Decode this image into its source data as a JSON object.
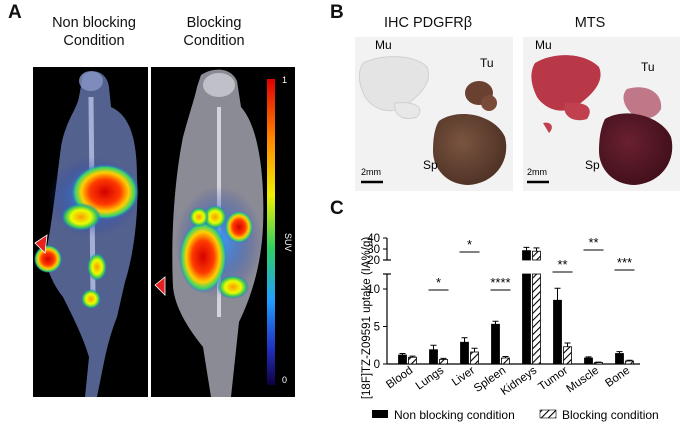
{
  "panels": {
    "a": {
      "letter": "A",
      "left_title_line1": "Non blocking",
      "left_title_line2": "Condition",
      "right_title_line1": "Blocking",
      "right_title_line2": "Condition",
      "colorbar": {
        "label": "SUV",
        "max_label": "1",
        "min_label": "0"
      }
    },
    "b": {
      "letter": "B",
      "left_title": "IHC PDGFRβ",
      "right_title": "MTS",
      "tissue_labels": {
        "mu": "Mu",
        "tu": "Tu",
        "sp": "Sp"
      },
      "scale_bar_label": "2mm",
      "colors": {
        "ihc_tissue": "#5a3a2c",
        "mts_muscle": "#b03040",
        "mts_spleen": "#4a1424"
      }
    },
    "c": {
      "letter": "C"
    }
  },
  "chart_data": {
    "type": "bar",
    "ylabel": "[18F]TZ-Z09591 uptake (IA%/g)",
    "categories": [
      "Blood",
      "Lungs",
      "Liver",
      "Spleen",
      "Kidneys",
      "Tumor",
      "Muscle",
      "Bone"
    ],
    "series": [
      {
        "name": "Non blocking condition",
        "fill": "solid",
        "values": [
          1.2,
          1.9,
          2.9,
          5.3,
          28.5,
          8.5,
          0.8,
          1.4
        ],
        "errors": [
          0.2,
          0.6,
          0.6,
          0.4,
          3.0,
          1.6,
          0.15,
          0.25
        ]
      },
      {
        "name": "Blocking condition",
        "fill": "hatched",
        "values": [
          0.9,
          0.6,
          1.6,
          0.8,
          28.0,
          2.3,
          0.2,
          0.4
        ],
        "errors": [
          0.15,
          0.15,
          0.5,
          0.2,
          3.0,
          0.5,
          0.05,
          0.1
        ]
      }
    ],
    "y_axis": {
      "lower_ticks": [
        0,
        5,
        10
      ],
      "upper_ticks": [
        20,
        30,
        40
      ],
      "break_between": [
        12,
        20
      ]
    },
    "significance": [
      {
        "category": "Lungs",
        "label": "*"
      },
      {
        "category": "Liver",
        "label": "*"
      },
      {
        "category": "Spleen",
        "label": "****"
      },
      {
        "category": "Tumor",
        "label": "**"
      },
      {
        "category": "Muscle",
        "label": "**"
      },
      {
        "category": "Bone",
        "label": "***"
      }
    ]
  }
}
